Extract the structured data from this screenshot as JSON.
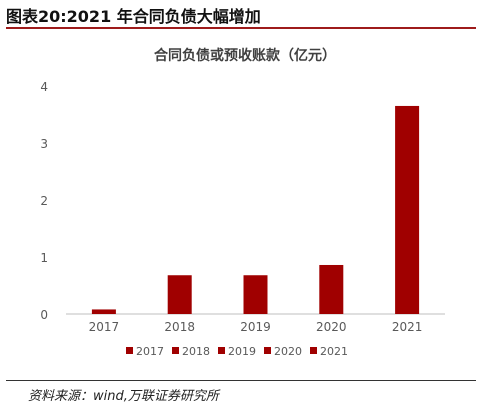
{
  "figure_title": "图表20:2021 年合同负债大幅增加",
  "source": "资料来源：wind,万联证券研究所",
  "colors": {
    "bar": "#a00000",
    "axis": "#bfbfbf",
    "text": "#595959"
  },
  "chart_data": {
    "type": "bar",
    "title": "合同负债或预收账款（亿元）",
    "xlabel": "",
    "ylabel": "",
    "categories": [
      "2017",
      "2018",
      "2019",
      "2020",
      "2021"
    ],
    "values": [
      0.08,
      0.68,
      0.68,
      0.86,
      3.65
    ],
    "ylim": [
      0,
      4
    ],
    "yticks": [
      "0",
      "1",
      "2",
      "3",
      "4"
    ],
    "grid": false,
    "legend": {
      "position": "bottom",
      "entries": [
        "2017",
        "2018",
        "2019",
        "2020",
        "2021"
      ]
    }
  }
}
